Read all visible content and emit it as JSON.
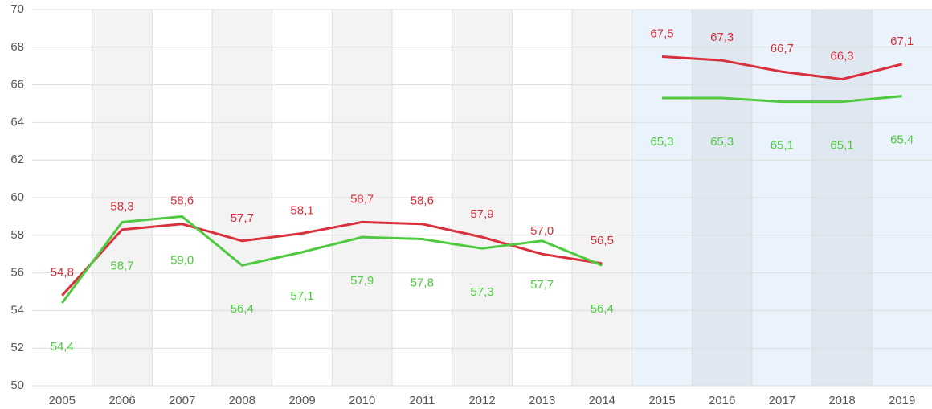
{
  "chart_data": {
    "type": "line",
    "categories": [
      "2005",
      "2006",
      "2007",
      "2008",
      "2009",
      "2010",
      "2011",
      "2012",
      "2013",
      "2014",
      "2015",
      "2016",
      "2017",
      "2018",
      "2019"
    ],
    "series": [
      {
        "name": null,
        "color": "#d9303e",
        "values": [
          54.8,
          58.3,
          58.6,
          57.7,
          58.1,
          58.7,
          58.6,
          57.9,
          57.0,
          56.5,
          67.5,
          67.3,
          66.7,
          66.3,
          67.1
        ],
        "value_labels": [
          "54,8",
          "58,3",
          "58,6",
          "57,7",
          "58,1",
          "58,7",
          "58,6",
          "57,9",
          "57,0",
          "56,5",
          "67,5",
          "67,3",
          "66,7",
          "66,3",
          "67,1"
        ]
      },
      {
        "name": null,
        "color": "#4ec940",
        "values": [
          54.4,
          58.7,
          59.0,
          56.4,
          57.1,
          57.9,
          57.8,
          57.3,
          57.7,
          56.4,
          65.3,
          65.3,
          65.1,
          65.1,
          65.4
        ],
        "value_labels": [
          "54,4",
          "58,7",
          "59,0",
          "56,4",
          "57,1",
          "57,9",
          "57,8",
          "57,3",
          "57,7",
          "56,4",
          "65,3",
          "65,3",
          "65,1",
          "65,1",
          "65,4"
        ]
      }
    ],
    "ylim": [
      50,
      70
    ],
    "yticks": [
      50,
      52,
      54,
      56,
      58,
      60,
      62,
      64,
      66,
      68,
      70
    ],
    "grid": true
  }
}
